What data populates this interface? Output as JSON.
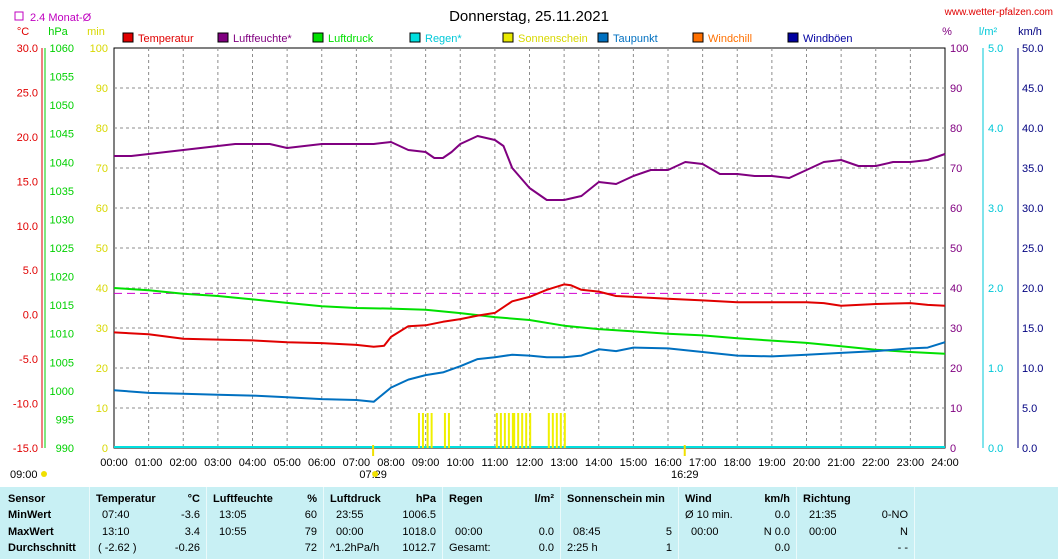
{
  "site": "www.wetter-pfalzen.com",
  "chart_data": {
    "type": "line",
    "title": "Donnerstag, 25.11.2021",
    "avg_note": "2.4 Monat-Ø",
    "units": {
      "celsius": "°C",
      "hpa": "hPa",
      "min": "min",
      "percent": "%",
      "lm2": "l/m²",
      "kmh": "km/h"
    },
    "legend": [
      {
        "name": "Temperatur",
        "color": "#e00000"
      },
      {
        "name": "Luftfeuchte*",
        "color": "#800080"
      },
      {
        "name": "Luftdruck",
        "color": "#00e000"
      },
      {
        "name": "Regen*",
        "color": "#00e0e0"
      },
      {
        "name": "Sonnenschein",
        "color": "#e8e800"
      },
      {
        "name": "Taupunkt",
        "color": "#0070c0"
      },
      {
        "name": "Windchill",
        "color": "#ff7000"
      },
      {
        "name": "Windböen",
        "color": "#0000a0"
      }
    ],
    "axes": {
      "temperature": {
        "label": "°C",
        "ticks": [
          "30.0",
          "25.0",
          "20.0",
          "15.0",
          "10.0",
          "5.0",
          "0.0",
          "-5.0",
          "-10.0",
          "-15.0"
        ],
        "range": [
          -15,
          30
        ]
      },
      "pressure": {
        "label": "hPa",
        "ticks": [
          "1060",
          "1055",
          "1050",
          "1045",
          "1040",
          "1035",
          "1030",
          "1025",
          "1020",
          "1015",
          "1010",
          "1005",
          "1000",
          "995",
          "990"
        ],
        "range": [
          990,
          1060
        ]
      },
      "minutes": {
        "label": "min",
        "ticks": [
          "100",
          "90",
          "80",
          "70",
          "60",
          "50",
          "40",
          "30",
          "20",
          "10",
          "0"
        ],
        "range": [
          0,
          100
        ]
      },
      "humidity": {
        "label": "%",
        "ticks": [
          "100",
          "90",
          "80",
          "70",
          "60",
          "50",
          "40",
          "30",
          "20",
          "10",
          "0"
        ],
        "range": [
          0,
          100
        ]
      },
      "rain": {
        "label": "l/m²",
        "ticks": [
          "5.0",
          "4.0",
          "3.0",
          "2.0",
          "1.0",
          "0.0"
        ],
        "range": [
          0,
          5
        ]
      },
      "wind": {
        "label": "km/h",
        "ticks": [
          "50.0",
          "45.0",
          "40.0",
          "35.0",
          "30.0",
          "25.0",
          "20.0",
          "15.0",
          "10.0",
          "5.0",
          "0.0"
        ],
        "range": [
          0,
          50
        ]
      },
      "x_ticks": [
        "00:00",
        "01:00",
        "02:00",
        "03:00",
        "04:00",
        "05:00",
        "06:00",
        "07:00",
        "08:00",
        "09:00",
        "10:00",
        "11:00",
        "12:00",
        "13:00",
        "14:00",
        "15:00",
        "16:00",
        "17:00",
        "18:00",
        "19:00",
        "20:00",
        "21:00",
        "22:00",
        "23:00",
        "24:00"
      ]
    },
    "sunrise": "07:29",
    "sunset": "16:29",
    "extra_time_label": "09:00",
    "avg_temperature_line": 2.4,
    "series": [
      {
        "name": "Luftfeuchte*",
        "axis": "humidity",
        "x": [
          0,
          0.5,
          1,
          1.5,
          2,
          2.5,
          3,
          3.5,
          4,
          4.5,
          5,
          5.5,
          6,
          6.5,
          7,
          7.5,
          8,
          8.5,
          9,
          9.25,
          9.5,
          9.75,
          10,
          10.5,
          11,
          11.25,
          11.5,
          12,
          12.5,
          13,
          13.5,
          14,
          14.5,
          15,
          15.5,
          16,
          16.5,
          17,
          17.5,
          18,
          18.5,
          19,
          19.5,
          20,
          20.5,
          21,
          21.5,
          22,
          22.5,
          23,
          23.5,
          24
        ],
        "y": [
          73,
          73,
          73.5,
          74,
          74.5,
          75,
          75.5,
          76,
          76,
          76,
          75,
          75.5,
          76,
          76,
          76,
          76,
          76.5,
          74.5,
          74,
          72.5,
          72.5,
          74,
          76,
          78,
          77,
          75.5,
          70,
          65,
          62,
          62,
          63,
          66.5,
          66,
          68,
          69.5,
          69.5,
          71.5,
          71,
          68.5,
          68.5,
          68,
          68,
          67.5,
          69.5,
          71.5,
          72,
          70.5,
          70.5,
          71.5,
          71.5,
          72,
          73.5
        ]
      },
      {
        "name": "Luftdruck",
        "axis": "pressure",
        "x": [
          0,
          1,
          2,
          3,
          4,
          5,
          6,
          7,
          8,
          9,
          10,
          11,
          12,
          13,
          14,
          15,
          16,
          17,
          18,
          19,
          20,
          21,
          22,
          23,
          24
        ],
        "y": [
          1018,
          1017.6,
          1017,
          1016.6,
          1016,
          1015.4,
          1014.8,
          1014.5,
          1014.4,
          1014.2,
          1013.6,
          1012.9,
          1012.4,
          1011.4,
          1010.8,
          1010.4,
          1010.0,
          1009.7,
          1009.2,
          1008.8,
          1008.4,
          1007.8,
          1007.2,
          1006.8,
          1006.5
        ]
      },
      {
        "name": "Temperatur",
        "axis": "temperature",
        "x": [
          0,
          1,
          2,
          3,
          4,
          5,
          6,
          7,
          7.5,
          7.8,
          8,
          8.5,
          9,
          9.5,
          10,
          10.5,
          11,
          11.5,
          12,
          12.5,
          13,
          13.2,
          13.5,
          14,
          14.5,
          15,
          16,
          17,
          18,
          19,
          20,
          20.5,
          21,
          22,
          23,
          23.5,
          24
        ],
        "y": [
          -2,
          -2.2,
          -2.7,
          -2.8,
          -2.9,
          -3.1,
          -3.2,
          -3.4,
          -3.6,
          -3.5,
          -2.5,
          -1.3,
          -1.2,
          -0.8,
          -0.5,
          -0.1,
          0.2,
          1.5,
          2.0,
          2.8,
          3.4,
          3.3,
          2.8,
          2.6,
          2.1,
          2.0,
          1.8,
          1.6,
          1.4,
          1.4,
          1.4,
          1.3,
          1.0,
          1.2,
          1.3,
          1.1,
          1.0
        ]
      },
      {
        "name": "Taupunkt",
        "axis": "temperature",
        "x": [
          0,
          1,
          2,
          3,
          4,
          5,
          6,
          7,
          7.5,
          8,
          8.5,
          9,
          9.5,
          10,
          10.5,
          11,
          11.5,
          12,
          12.5,
          13,
          13.5,
          14,
          14.5,
          15,
          16,
          17,
          18,
          19,
          20,
          21,
          22,
          23,
          23.5,
          24
        ],
        "y": [
          -8.5,
          -8.8,
          -8.9,
          -9.0,
          -9.1,
          -9.3,
          -9.5,
          -9.6,
          -9.8,
          -8.2,
          -7.3,
          -6.8,
          -6.5,
          -5.8,
          -5.0,
          -4.8,
          -4.5,
          -4.6,
          -4.8,
          -4.8,
          -4.6,
          -3.9,
          -4.1,
          -3.7,
          -3.8,
          -4.2,
          -4.6,
          -4.7,
          -4.5,
          -4.3,
          -4.1,
          -3.8,
          -3.7,
          -3.1
        ]
      }
    ],
    "sunshine_minutes": [
      {
        "from": "08:45",
        "to": "09:00",
        "value": 5
      },
      {
        "from": "09:00",
        "to": "09:15",
        "value": 5
      },
      {
        "from": "09:30",
        "to": "09:45",
        "value": 5
      },
      {
        "from": "11:00",
        "to": "11:30",
        "value": 5
      },
      {
        "from": "11:30",
        "to": "12:00",
        "value": 5
      },
      {
        "from": "12:30",
        "to": "13:00",
        "value": 5
      }
    ],
    "rain_l_m2": 0.0
  },
  "stats": {
    "headers": {
      "sensor": "Sensor",
      "temp": "Temperatur",
      "temp_unit": "°C",
      "hum": "Luftfeuchte",
      "hum_unit": "%",
      "press": "Luftdruck",
      "press_unit": "hPa",
      "rain": "Regen",
      "rain_unit": "l/m²",
      "sun": "Sonnenschein min",
      "wind": "Wind",
      "wind_unit": "km/h",
      "dir": "Richtung"
    },
    "rows": [
      {
        "label": "MinWert",
        "temp_time": "07:40",
        "temp_val": "-3.6",
        "hum_time": "13:05",
        "hum_val": "60",
        "press_time": "23:55",
        "press_val": "1006.5",
        "rain_time": "",
        "rain_val": "",
        "sun_time": "",
        "sun_val": "",
        "wind_time": "Ø 10 min.",
        "wind_val": "0.0",
        "dir_time": "21:35",
        "dir_val": "0-NO"
      },
      {
        "label": "MaxWert",
        "temp_time": "13:10",
        "temp_val": "3.4",
        "hum_time": "10:55",
        "hum_val": "79",
        "press_time": "00:00",
        "press_val": "1018.0",
        "rain_time": "00:00",
        "rain_val": "0.0",
        "sun_time": "08:45",
        "sun_val": "5",
        "wind_time": "00:00",
        "wind_val": "N 0.0",
        "dir_time": "00:00",
        "dir_val": "N"
      },
      {
        "label": "Durchschnitt",
        "temp_time": "( -2.62 )",
        "temp_val": "-0.26",
        "hum_time": "",
        "hum_val": "72",
        "press_time": "^1.2hPa/h",
        "press_val": "1012.7",
        "rain_time": "Gesamt:",
        "rain_val": "0.0",
        "sun_time": "2:25 h",
        "sun_val": "1",
        "wind_time": "",
        "wind_val": "0.0",
        "dir_time": "",
        "dir_val": "- -"
      }
    ]
  }
}
